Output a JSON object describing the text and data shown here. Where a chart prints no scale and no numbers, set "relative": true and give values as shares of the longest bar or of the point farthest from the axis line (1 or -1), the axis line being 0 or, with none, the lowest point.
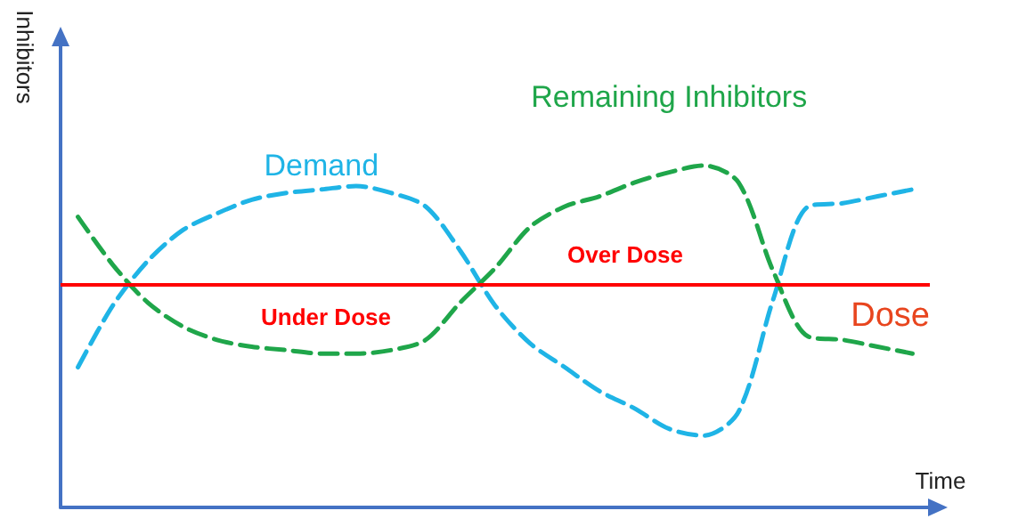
{
  "chart_data": {
    "type": "line",
    "relative": true,
    "xlabel": "Time",
    "ylabel": "Inhibitors",
    "categories": [
      null,
      null,
      null,
      null,
      null,
      null,
      null,
      null,
      null,
      null,
      null,
      null,
      null,
      null,
      null,
      null,
      null,
      null,
      null,
      null,
      null,
      null,
      null,
      null,
      null
    ],
    "series": [
      {
        "name": "Demand",
        "color": "#1fb4e6",
        "values": [
          0.41,
          0.59,
          0.72,
          0.81,
          0.86,
          0.9,
          0.92,
          0.93,
          0.94,
          0.92,
          0.88,
          0.75,
          0.59,
          0.48,
          0.41,
          0.34,
          0.29,
          0.23,
          0.21,
          0.28,
          0.61,
          0.88,
          0.89,
          0.91,
          0.93
        ]
      },
      {
        "name": "Remaining Inhibitors",
        "color": "#1fa64a",
        "values": [
          0.85,
          0.71,
          0.6,
          0.53,
          0.49,
          0.47,
          0.46,
          0.45,
          0.45,
          0.46,
          0.49,
          0.6,
          0.7,
          0.82,
          0.88,
          0.91,
          0.95,
          0.98,
          1.0,
          0.95,
          0.69,
          0.5,
          0.49,
          0.47,
          0.45
        ]
      }
    ],
    "ref_lines": [
      {
        "axis": "y",
        "value": 0.65,
        "label": "Dose",
        "color": "#ff0000"
      }
    ],
    "annotations": [
      "Under Dose",
      "Over Dose"
    ],
    "line_style": "dashed",
    "marker": "none",
    "legend": false,
    "grid": false
  }
}
